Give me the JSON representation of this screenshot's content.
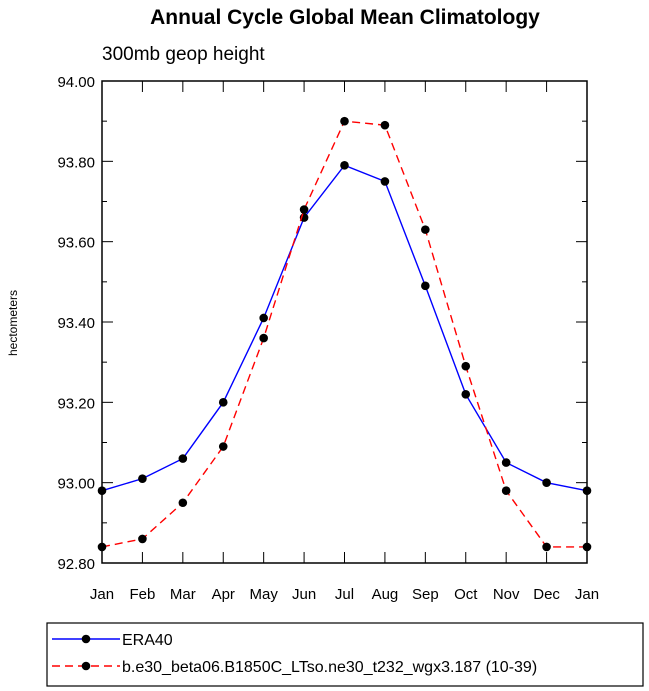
{
  "chart_data": {
    "type": "line",
    "title": "Annual Cycle Global Mean Climatology",
    "subtitle": "300mb geop height",
    "xlabel": "",
    "ylabel": "hectometers",
    "categories": [
      "Jan",
      "Feb",
      "Mar",
      "Apr",
      "May",
      "Jun",
      "Jul",
      "Aug",
      "Sep",
      "Oct",
      "Nov",
      "Dec",
      "Jan"
    ],
    "yticks": [
      "92.80",
      "93.00",
      "93.20",
      "93.40",
      "93.60",
      "93.80",
      "94.00"
    ],
    "ylim": [
      92.8,
      94.0
    ],
    "grid": false,
    "legend_position": "bottom",
    "series": [
      {
        "name": "ERA40",
        "color": "#0000ff",
        "style": "solid",
        "values": [
          92.98,
          93.01,
          93.06,
          93.2,
          93.41,
          93.66,
          93.79,
          93.75,
          93.49,
          93.22,
          93.05,
          93.0,
          92.98
        ]
      },
      {
        "name": "b.e30_beta06.B1850C_LTso.ne30_t232_wgx3.187 (10-39)",
        "color": "#ff0000",
        "style": "dashed",
        "values": [
          92.84,
          92.86,
          92.95,
          93.09,
          93.36,
          93.68,
          93.9,
          93.89,
          93.63,
          93.29,
          92.98,
          92.84,
          92.84
        ]
      }
    ]
  }
}
